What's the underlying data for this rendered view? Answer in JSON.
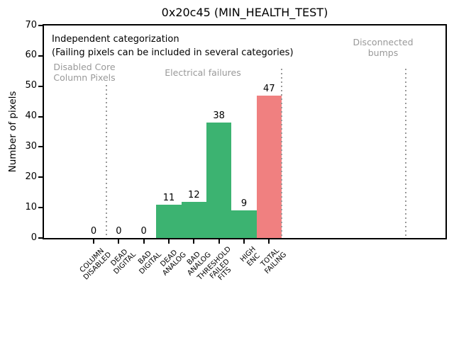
{
  "chart_data": {
    "type": "bar",
    "title": "0x20c45 (MIN_HEALTH_TEST)",
    "xlabel": "",
    "ylabel": "Number of pixels",
    "ylim": [
      0,
      70
    ],
    "yticks": [
      0,
      10,
      20,
      30,
      40,
      50,
      60,
      70
    ],
    "grid": false,
    "legend": false,
    "categories": [
      [
        "COLUMN",
        "DISABLED"
      ],
      [
        "DEAD",
        "DIGITAL"
      ],
      [
        "BAD",
        "DIGITAL"
      ],
      [
        "DEAD",
        "ANALOG"
      ],
      [
        "BAD",
        "ANALOG"
      ],
      [
        "THRESHOLD",
        "FAILED",
        "FITS"
      ],
      [
        "HIGH",
        "ENC"
      ],
      [
        "TOTAL",
        "FAILING"
      ]
    ],
    "values": [
      0,
      0,
      0,
      11,
      12,
      38,
      9,
      47
    ],
    "value_labels": [
      "0",
      "0",
      "0",
      "11",
      "12",
      "38",
      "9",
      "47"
    ],
    "bar_colors": [
      "#3cb371",
      "#3cb371",
      "#3cb371",
      "#3cb371",
      "#3cb371",
      "#3cb371",
      "#3cb371",
      "#f08080"
    ],
    "annotations": [
      {
        "text": [
          "Independent categorization",
          "(Failing pixels can be included in several categories)"
        ],
        "color": "#000000"
      },
      {
        "text": [
          "Disabled Core",
          "Column Pixels"
        ],
        "color": "#999999"
      },
      {
        "text": [
          "Electrical failures"
        ],
        "color": "#999999"
      },
      {
        "text": [
          "Disconnected",
          "bumps"
        ],
        "color": "#999999"
      }
    ],
    "separator_lines": {
      "style": "dotted",
      "color": "#999999",
      "count": 3
    },
    "colors": {
      "pass_green": "#3cb371",
      "fail_red": "#f08080",
      "annotation_gray": "#999999"
    }
  }
}
